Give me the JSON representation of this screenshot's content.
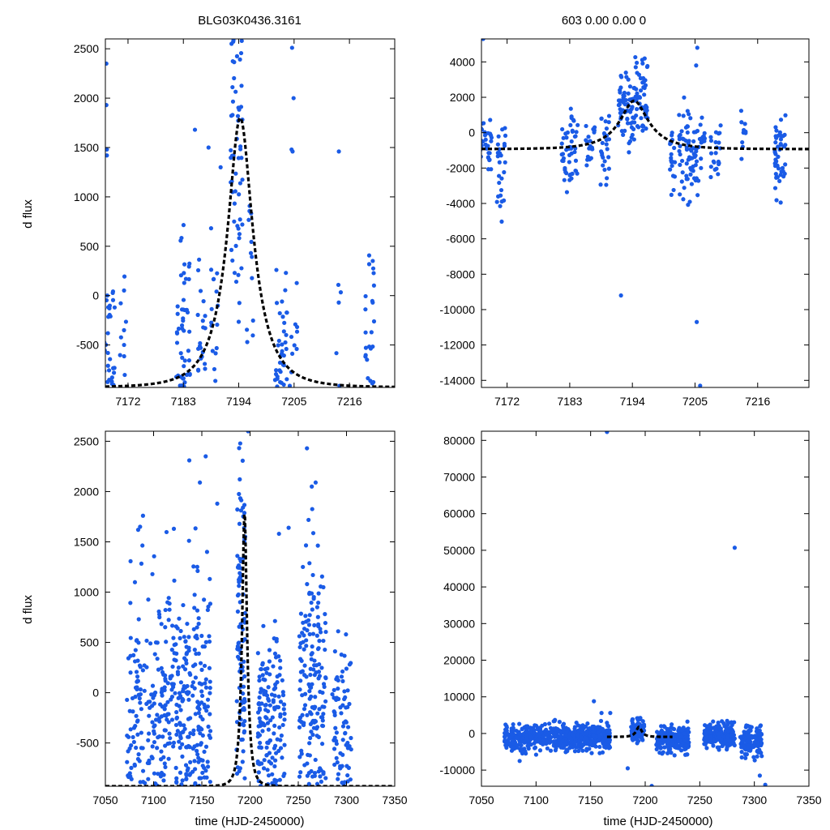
{
  "figure": {
    "title_left": "BLG03K0436.3161",
    "title_right": "603  0.00  0.00  0",
    "ylabel": "d flux",
    "xlabel": "time (HJD-2450000)"
  },
  "colors": {
    "points": "#1a5be6",
    "model": "#000000",
    "axes": "#000000"
  },
  "model": {
    "t0": 7194.3,
    "u0": 0.38,
    "tE": 6.5
  },
  "chart_data": [
    {
      "id": "top-left",
      "type": "scatter",
      "title": "BLG03K0436.3161",
      "xlabel": "",
      "ylabel": "d flux",
      "xlim": [
        7167.5,
        7225
      ],
      "ylim": [
        -930,
        2600
      ],
      "xticks": [
        7172,
        7183,
        7194,
        7205,
        7216
      ],
      "yticks": [
        -500,
        0,
        500,
        1000,
        1500,
        2000,
        2500
      ],
      "model": {
        "base": -930,
        "amp": 2730
      },
      "seed": 11,
      "clusters": [
        {
          "t": 7168.2,
          "w": 1.2,
          "n": 34,
          "lo": -930,
          "hi": 550,
          "c": -450,
          "s": 350
        },
        {
          "t": 7171.0,
          "w": 0.7,
          "n": 10,
          "lo": -900,
          "hi": 300,
          "c": -300,
          "s": 380
        },
        {
          "t": 7182.4,
          "w": 0.8,
          "n": 22,
          "lo": -930,
          "hi": 900,
          "c": -350,
          "s": 400
        },
        {
          "t": 7183.6,
          "w": 0.7,
          "n": 26,
          "lo": -930,
          "hi": 1300,
          "c": -200,
          "s": 450
        },
        {
          "t": 7186.6,
          "w": 0.8,
          "n": 20,
          "lo": -930,
          "hi": 600,
          "c": -400,
          "s": 350
        },
        {
          "t": 7189.2,
          "w": 0.7,
          "n": 16,
          "lo": -930,
          "hi": 900,
          "c": -300,
          "s": 400
        },
        {
          "t": 7193.6,
          "w": 1.2,
          "n": 55,
          "lo": -500,
          "hi": 2600,
          "c": 1300,
          "s": 700
        },
        {
          "t": 7196.3,
          "w": 0.8,
          "n": 12,
          "lo": -500,
          "hi": 1500,
          "c": 400,
          "s": 500
        },
        {
          "t": 7202.4,
          "w": 1.2,
          "n": 36,
          "lo": -930,
          "hi": 900,
          "c": -450,
          "s": 380
        },
        {
          "t": 7204.8,
          "w": 0.8,
          "n": 10,
          "lo": -930,
          "hi": 600,
          "c": -300,
          "s": 380
        },
        {
          "t": 7213.8,
          "w": 0.5,
          "n": 5,
          "lo": -930,
          "hi": 800,
          "c": -300,
          "s": 450
        },
        {
          "t": 7220.0,
          "w": 0.9,
          "n": 24,
          "lo": -930,
          "hi": 900,
          "c": -350,
          "s": 400
        }
      ],
      "extra_points": [
        [
          7167.7,
          2350
        ],
        [
          7167.7,
          1930
        ],
        [
          7167.8,
          1480
        ],
        [
          7167.8,
          1420
        ],
        [
          7204.6,
          2510
        ],
        [
          7204.9,
          2000
        ],
        [
          7204.5,
          1480
        ],
        [
          7204.7,
          1460
        ],
        [
          7213.9,
          1460
        ],
        [
          7194.6,
          2580
        ],
        [
          7190.4,
          1300
        ],
        [
          7188.0,
          1500
        ],
        [
          7185.3,
          1680
        ]
      ]
    },
    {
      "id": "top-right",
      "type": "scatter",
      "title": "603  0.00  0.00  0",
      "xlabel": "",
      "ylabel": "",
      "xlim": [
        7167.5,
        7225
      ],
      "ylim": [
        -14400,
        5300
      ],
      "xticks": [
        7172,
        7183,
        7194,
        7205,
        7216
      ],
      "yticks": [
        -14000,
        -12000,
        -10000,
        -8000,
        -6000,
        -4000,
        -2000,
        0,
        2000,
        4000
      ],
      "model": {
        "base": -930,
        "amp": 2730
      },
      "seed": 23,
      "clusters": [
        {
          "t": 7168.2,
          "w": 1.2,
          "n": 40,
          "lo": -3000,
          "hi": 2400,
          "c": -800,
          "s": 900
        },
        {
          "t": 7171.0,
          "w": 0.8,
          "n": 26,
          "lo": -5100,
          "hi": 300,
          "c": -1900,
          "s": 1400
        },
        {
          "t": 7182.4,
          "w": 0.8,
          "n": 24,
          "lo": -4000,
          "hi": 1400,
          "c": -1000,
          "s": 1100
        },
        {
          "t": 7183.6,
          "w": 0.8,
          "n": 26,
          "lo": -2600,
          "hi": 1700,
          "c": -400,
          "s": 900
        },
        {
          "t": 7186.6,
          "w": 0.8,
          "n": 20,
          "lo": -2000,
          "hi": 800,
          "c": -600,
          "s": 700
        },
        {
          "t": 7189.2,
          "w": 0.8,
          "n": 26,
          "lo": -3700,
          "hi": 1000,
          "c": -1200,
          "s": 1100
        },
        {
          "t": 7194.1,
          "w": 2.6,
          "n": 120,
          "lo": -1800,
          "hi": 4400,
          "c": 1700,
          "s": 1100
        },
        {
          "t": 7201.0,
          "w": 0.5,
          "n": 20,
          "lo": -3600,
          "hi": 0,
          "c": -1400,
          "s": 900
        },
        {
          "t": 7203.7,
          "w": 1.5,
          "n": 60,
          "lo": -5500,
          "hi": 2300,
          "c": -1300,
          "s": 1500
        },
        {
          "t": 7206.0,
          "w": 0.9,
          "n": 26,
          "lo": -3700,
          "hi": 1100,
          "c": -1000,
          "s": 1100
        },
        {
          "t": 7208.6,
          "w": 0.9,
          "n": 22,
          "lo": -3300,
          "hi": 600,
          "c": -1000,
          "s": 900
        },
        {
          "t": 7213.5,
          "w": 0.5,
          "n": 10,
          "lo": -1900,
          "hi": 1500,
          "c": -300,
          "s": 900
        },
        {
          "t": 7220.0,
          "w": 1.0,
          "n": 45,
          "lo": -4300,
          "hi": 1000,
          "c": -1200,
          "s": 1100
        }
      ],
      "extra_points": [
        [
          7167.8,
          5300
        ],
        [
          7192.0,
          -9200
        ],
        [
          7205.4,
          4800
        ],
        [
          7205.3,
          -10700
        ],
        [
          7205.9,
          -14300
        ],
        [
          7205.2,
          3800
        ]
      ]
    },
    {
      "id": "bottom-left",
      "type": "scatter",
      "title": "",
      "xlabel": "time (HJD-2450000)",
      "ylabel": "d flux",
      "xlim": [
        7050,
        7350
      ],
      "ylim": [
        -930,
        2600
      ],
      "xticks": [
        7050,
        7100,
        7150,
        7200,
        7250,
        7300,
        7350
      ],
      "yticks": [
        -500,
        0,
        500,
        1000,
        1500,
        2000,
        2500
      ],
      "model": {
        "base": -930,
        "amp": 2730
      },
      "seed": 37,
      "clusters": [
        {
          "t": 7092,
          "w": 20,
          "n": 150,
          "lo": -930,
          "hi": 1800,
          "c": -150,
          "s": 520
        },
        {
          "t": 7135,
          "w": 24,
          "n": 260,
          "lo": -930,
          "hi": 2400,
          "c": -50,
          "s": 550
        },
        {
          "t": 7190.5,
          "w": 4.5,
          "n": 100,
          "lo": -930,
          "hi": 2600,
          "c": 600,
          "s": 900
        },
        {
          "t": 7222,
          "w": 14,
          "n": 150,
          "lo": -930,
          "hi": 1500,
          "c": -300,
          "s": 450
        },
        {
          "t": 7265,
          "w": 14,
          "n": 170,
          "lo": -930,
          "hi": 2400,
          "c": 150,
          "s": 650
        },
        {
          "t": 7295,
          "w": 10,
          "n": 75,
          "lo": -930,
          "hi": 900,
          "c": -300,
          "s": 400
        }
      ],
      "extra_points": [
        [
          7089,
          1760
        ],
        [
          7086,
          1650
        ],
        [
          7084,
          1620
        ],
        [
          7154,
          2350
        ],
        [
          7137,
          2310
        ],
        [
          7148,
          2090
        ],
        [
          7166,
          1880
        ],
        [
          7121,
          1630
        ],
        [
          7259,
          2430
        ],
        [
          7268,
          2090
        ],
        [
          7264,
          2050
        ],
        [
          7240,
          1640
        ],
        [
          7230,
          1580
        ],
        [
          7198,
          2600
        ]
      ]
    },
    {
      "id": "bottom-right",
      "type": "scatter",
      "title": "",
      "xlabel": "time (HJD-2450000)",
      "ylabel": "",
      "xlim": [
        7050,
        7350
      ],
      "ylim": [
        -14400,
        82500
      ],
      "xticks": [
        7050,
        7100,
        7150,
        7200,
        7250,
        7300,
        7350
      ],
      "yticks": [
        -10000,
        0,
        10000,
        20000,
        30000,
        40000,
        50000,
        60000,
        70000,
        80000
      ],
      "model": {
        "base": -930,
        "amp": 2730,
        "range": [
          7165,
          7225
        ]
      },
      "seed": 53,
      "clusters": [
        {
          "t": 7093,
          "w": 22,
          "n": 260,
          "lo": -8000,
          "hi": 4000,
          "c": -1200,
          "s": 1600
        },
        {
          "t": 7142,
          "w": 26,
          "n": 360,
          "lo": -9000,
          "hi": 5500,
          "c": -1000,
          "s": 1800
        },
        {
          "t": 7193,
          "w": 6,
          "n": 120,
          "lo": -4000,
          "hi": 5000,
          "c": 800,
          "s": 1600
        },
        {
          "t": 7225,
          "w": 15,
          "n": 220,
          "lo": -8000,
          "hi": 3500,
          "c": -1500,
          "s": 1700
        },
        {
          "t": 7268,
          "w": 14,
          "n": 240,
          "lo": -7000,
          "hi": 3500,
          "c": -800,
          "s": 1700
        },
        {
          "t": 7297,
          "w": 10,
          "n": 130,
          "lo": -10000,
          "hi": 2500,
          "c": -1600,
          "s": 2000
        }
      ],
      "extra_points": [
        [
          7165,
          82300
        ],
        [
          7282,
          50700
        ],
        [
          7153,
          8800
        ],
        [
          7160,
          5600
        ],
        [
          7168,
          5600
        ],
        [
          7184,
          -9500
        ],
        [
          7206,
          -14300
        ],
        [
          7310,
          -14000
        ],
        [
          7305,
          -11500
        ],
        [
          7085,
          -7500
        ]
      ]
    }
  ]
}
